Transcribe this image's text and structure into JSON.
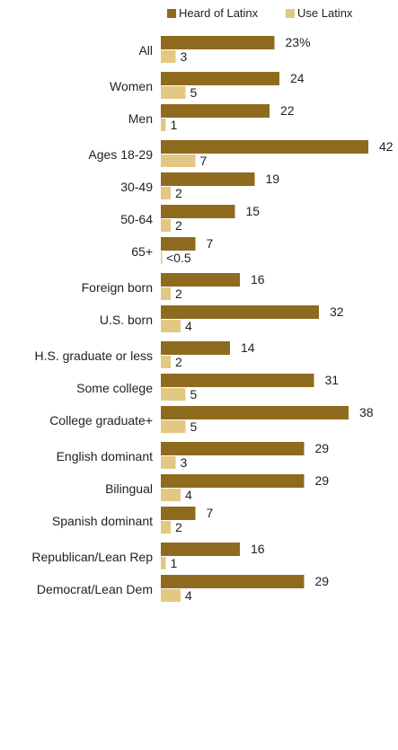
{
  "chart_data": {
    "type": "bar",
    "orientation": "horizontal",
    "legend_position": "top-right",
    "colors": {
      "heard": "#8f6b1f",
      "use": "#e2c883"
    },
    "series": [
      {
        "name": "Heard of Latinx",
        "key": "heard"
      },
      {
        "name": "Use Latinx",
        "key": "use"
      }
    ],
    "groups": [
      {
        "rows": [
          {
            "label": "All",
            "heard": 23,
            "heard_label": "23%",
            "use": 3,
            "use_label": "3"
          }
        ]
      },
      {
        "rows": [
          {
            "label": "Women",
            "heard": 24,
            "heard_label": "24",
            "use": 5,
            "use_label": "5"
          },
          {
            "label": "Men",
            "heard": 22,
            "heard_label": "22",
            "use": 1,
            "use_label": "1"
          }
        ]
      },
      {
        "rows": [
          {
            "label": "Ages 18-29",
            "heard": 42,
            "heard_label": "42",
            "use": 7,
            "use_label": "7"
          },
          {
            "label": "30-49",
            "heard": 19,
            "heard_label": "19",
            "use": 2,
            "use_label": "2"
          },
          {
            "label": "50-64",
            "heard": 15,
            "heard_label": "15",
            "use": 2,
            "use_label": "2"
          },
          {
            "label": "65+",
            "heard": 7,
            "heard_label": "7",
            "use": 0.2,
            "use_label": "<0.5"
          }
        ]
      },
      {
        "rows": [
          {
            "label": "Foreign born",
            "heard": 16,
            "heard_label": "16",
            "use": 2,
            "use_label": "2"
          },
          {
            "label": "U.S. born",
            "heard": 32,
            "heard_label": "32",
            "use": 4,
            "use_label": "4"
          }
        ]
      },
      {
        "rows": [
          {
            "label": "H.S. graduate or less",
            "heard": 14,
            "heard_label": "14",
            "use": 2,
            "use_label": "2"
          },
          {
            "label": "Some college",
            "heard": 31,
            "heard_label": "31",
            "use": 5,
            "use_label": "5"
          },
          {
            "label": "College graduate+",
            "heard": 38,
            "heard_label": "38",
            "use": 5,
            "use_label": "5"
          }
        ]
      },
      {
        "rows": [
          {
            "label": "English dominant",
            "heard": 29,
            "heard_label": "29",
            "use": 3,
            "use_label": "3"
          },
          {
            "label": "Bilingual",
            "heard": 29,
            "heard_label": "29",
            "use": 4,
            "use_label": "4"
          },
          {
            "label": "Spanish dominant",
            "heard": 7,
            "heard_label": "7",
            "use": 2,
            "use_label": "2"
          }
        ]
      },
      {
        "rows": [
          {
            "label": "Republican/Lean Rep",
            "heard": 16,
            "heard_label": "16",
            "use": 1,
            "use_label": "1"
          },
          {
            "label": "Democrat/Lean Dem",
            "heard": 29,
            "heard_label": "29",
            "use": 4,
            "use_label": "4"
          }
        ]
      }
    ]
  }
}
